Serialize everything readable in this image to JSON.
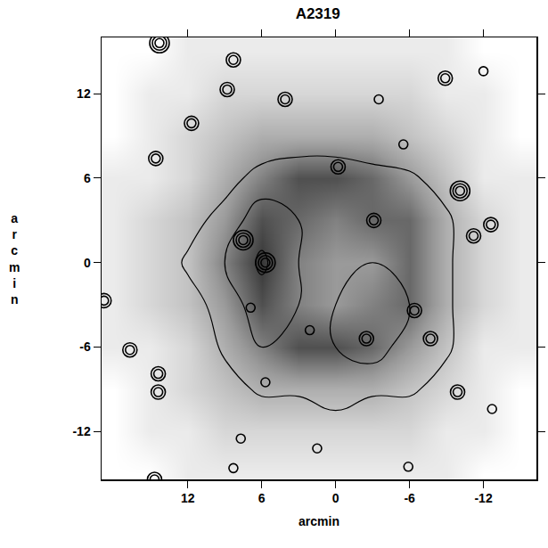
{
  "chart_data": {
    "type": "image",
    "title": "A2319",
    "x_label": "arcmin",
    "y_label": "arcmin",
    "xlim": [
      19.0,
      -16.3
    ],
    "ylim": [
      -15.4,
      16.0
    ],
    "xticks": [
      12,
      6,
      0,
      -6,
      -12
    ],
    "yticks": [
      -12,
      -6,
      0,
      6,
      12
    ],
    "grid": false,
    "xray": {
      "x": [
        18,
        15,
        12,
        9,
        6,
        3,
        0,
        -3,
        -6,
        -9,
        -12,
        -15
      ],
      "y": [
        -15,
        -12,
        -9,
        -6,
        -3,
        0,
        3,
        6,
        9,
        12,
        15
      ],
      "zlim": [
        0,
        10
      ],
      "z": [
        [
          0,
          0,
          1,
          1,
          1,
          1,
          1,
          1,
          1,
          1,
          0,
          0
        ],
        [
          0,
          1,
          1,
          2,
          2,
          2,
          2,
          2,
          2,
          1,
          1,
          0
        ],
        [
          0,
          1,
          2,
          3,
          4,
          4,
          4,
          4,
          3,
          2,
          1,
          0
        ],
        [
          1,
          1,
          2,
          4,
          6,
          8,
          8,
          7,
          5,
          3,
          1,
          1
        ],
        [
          1,
          2,
          3,
          5,
          8,
          6,
          5,
          6,
          7,
          4,
          2,
          1
        ],
        [
          1,
          2,
          3,
          6,
          9,
          6,
          5,
          5,
          7,
          4,
          2,
          1
        ],
        [
          1,
          2,
          3,
          5,
          8,
          7,
          6,
          7,
          7,
          4,
          2,
          1
        ],
        [
          1,
          1,
          2,
          4,
          6,
          8,
          8,
          7,
          5,
          3,
          1,
          1
        ],
        [
          0,
          1,
          2,
          3,
          4,
          4,
          4,
          4,
          3,
          2,
          1,
          0
        ],
        [
          0,
          1,
          1,
          2,
          2,
          2,
          2,
          2,
          2,
          1,
          1,
          0
        ],
        [
          0,
          0,
          1,
          1,
          1,
          1,
          1,
          1,
          1,
          1,
          0,
          0
        ]
      ]
    },
    "radio": {
      "x": [
        18,
        15,
        12,
        9,
        6,
        3,
        0,
        -3,
        -6,
        -9,
        -12,
        -15
      ],
      "y": [
        -15,
        -12,
        -9,
        -6,
        -3,
        0,
        3,
        6,
        9,
        12,
        15
      ],
      "contour_levels": [
        1,
        2,
        3
      ],
      "z": [
        [
          0,
          0,
          0,
          0,
          0,
          0,
          0,
          0,
          0,
          0,
          0,
          0
        ],
        [
          0,
          0,
          0,
          0,
          0,
          0,
          0.5,
          0,
          0,
          0,
          0,
          0
        ],
        [
          0,
          0,
          0,
          0.5,
          1.2,
          1.2,
          1.5,
          1.2,
          1.2,
          0.5,
          0,
          0
        ],
        [
          0,
          0,
          0,
          1.2,
          2,
          2,
          2,
          2.5,
          1.5,
          1.2,
          0,
          0
        ],
        [
          0,
          0,
          0.5,
          1.5,
          2.5,
          2,
          2,
          2.5,
          2,
          1.2,
          0,
          0
        ],
        [
          0,
          0,
          1.2,
          2,
          3.2,
          2,
          1.5,
          2,
          2,
          1.2,
          0,
          0
        ],
        [
          0,
          0,
          0.5,
          1.5,
          2.5,
          2,
          1.5,
          2,
          1.5,
          1.2,
          0,
          0
        ],
        [
          0,
          0,
          0,
          0.5,
          1.5,
          1.5,
          1.5,
          1.5,
          1.2,
          0.5,
          0,
          0
        ],
        [
          0,
          0,
          0,
          0,
          0,
          0.5,
          0.5,
          0,
          0,
          0,
          0,
          0
        ],
        [
          0,
          0,
          0,
          0,
          0,
          0,
          0,
          0,
          0,
          0,
          0,
          0
        ],
        [
          0,
          0,
          0,
          0,
          0,
          0,
          0,
          0,
          0,
          0,
          0,
          0
        ]
      ],
      "sources": [
        {
          "x": 14.3,
          "y": 15.6,
          "rings": 3
        },
        {
          "x": 8.3,
          "y": 14.4,
          "rings": 2
        },
        {
          "x": 8.8,
          "y": 12.3,
          "rings": 2
        },
        {
          "x": 4.1,
          "y": 11.6,
          "rings": 2
        },
        {
          "x": 11.7,
          "y": 9.9,
          "rings": 2
        },
        {
          "x": 14.6,
          "y": 7.4,
          "rings": 2
        },
        {
          "x": -8.9,
          "y": 13.1,
          "rings": 2
        },
        {
          "x": -12.0,
          "y": 13.6,
          "rings": 1
        },
        {
          "x": -3.5,
          "y": 11.6,
          "rings": 1
        },
        {
          "x": -10.1,
          "y": 5.1,
          "rings": 3
        },
        {
          "x": -0.2,
          "y": 6.8,
          "rings": 2
        },
        {
          "x": -12.6,
          "y": 2.7,
          "rings": 2
        },
        {
          "x": -11.2,
          "y": 1.9,
          "rings": 2
        },
        {
          "x": 7.5,
          "y": 1.6,
          "rings": 3
        },
        {
          "x": 5.7,
          "y": 0.0,
          "rings": 3
        },
        {
          "x": -2.5,
          "y": -5.4,
          "rings": 2
        },
        {
          "x": 6.9,
          "y": -3.2,
          "rings": 1
        },
        {
          "x": 16.7,
          "y": -6.2,
          "rings": 2
        },
        {
          "x": 14.4,
          "y": -7.9,
          "rings": 2
        },
        {
          "x": 14.4,
          "y": -9.2,
          "rings": 2
        },
        {
          "x": -9.9,
          "y": -9.2,
          "rings": 2
        },
        {
          "x": -12.7,
          "y": -10.4,
          "rings": 1
        },
        {
          "x": 7.7,
          "y": -12.5,
          "rings": 1
        },
        {
          "x": 1.5,
          "y": -13.2,
          "rings": 1
        },
        {
          "x": 8.3,
          "y": -14.6,
          "rings": 1
        },
        {
          "x": -5.9,
          "y": -14.5,
          "rings": 1
        },
        {
          "x": 14.7,
          "y": -15.4,
          "rings": 2
        },
        {
          "x": -6.4,
          "y": -3.4,
          "rings": 2
        },
        {
          "x": -7.7,
          "y": -5.4,
          "rings": 2
        },
        {
          "x": -3.1,
          "y": 3.0,
          "rings": 2
        },
        {
          "x": -5.5,
          "y": 8.4,
          "rings": 1
        },
        {
          "x": 5.7,
          "y": -8.5,
          "rings": 1
        },
        {
          "x": 18.8,
          "y": -2.7,
          "rings": 2
        },
        {
          "x": 2.1,
          "y": -4.8,
          "rings": 1
        }
      ]
    }
  }
}
